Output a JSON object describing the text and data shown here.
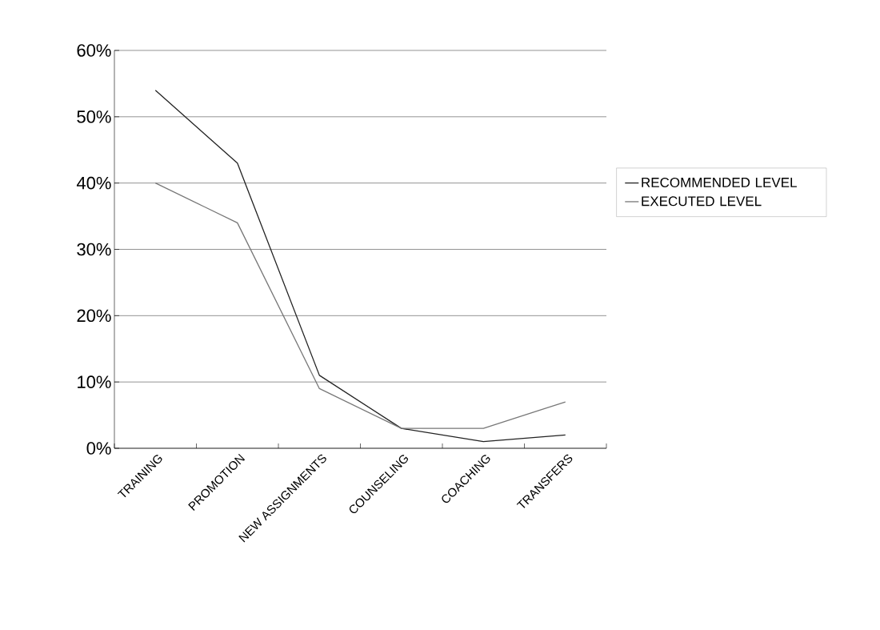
{
  "chart_data": {
    "type": "line",
    "categories": [
      "TRAINING",
      "PROMOTION",
      "NEW ASSIGNMENTS",
      "COUNSELING",
      "COACHING",
      "TRANSFERS"
    ],
    "series": [
      {
        "name": "RECOMMENDED LEVEL",
        "color": "#222222",
        "values": [
          54,
          43,
          11,
          3,
          1,
          2
        ]
      },
      {
        "name": "EXECUTED LEVEL",
        "color": "#777777",
        "values": [
          40,
          34,
          9,
          3,
          3,
          7
        ]
      }
    ],
    "ylim": [
      0,
      60
    ],
    "yticks": [
      {
        "value": 0,
        "label": "0%"
      },
      {
        "value": 10,
        "label": "10%"
      },
      {
        "value": 20,
        "label": "20%"
      },
      {
        "value": 30,
        "label": "30%"
      },
      {
        "value": 40,
        "label": "40%"
      },
      {
        "value": 50,
        "label": "50%"
      },
      {
        "value": 60,
        "label": "60%"
      }
    ],
    "grid": "y",
    "legend": "right",
    "marker": "none",
    "line_style": "solid"
  }
}
